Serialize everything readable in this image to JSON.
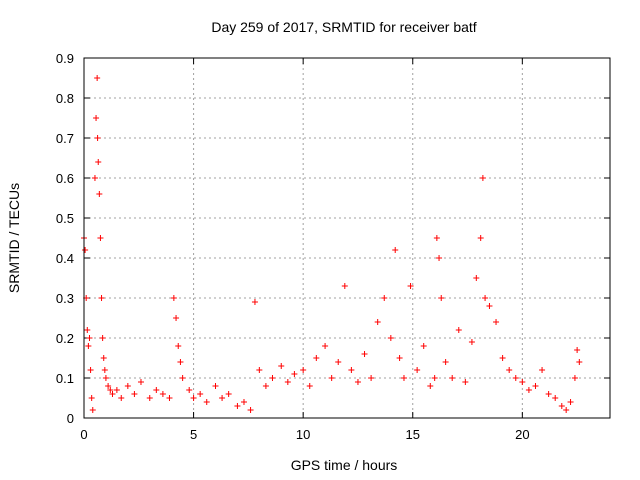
{
  "chart_data": {
    "type": "scatter",
    "title": "Day 259 of 2017, SRMTID for receiver batf",
    "xlabel": "GPS time / hours",
    "ylabel": "SRMTID / TECUs",
    "xlim": [
      0,
      24
    ],
    "ylim": [
      0,
      0.9
    ],
    "xticks": [
      0,
      5,
      10,
      15,
      20
    ],
    "xtick_labels": [
      "0",
      "5",
      "10",
      "15",
      "20"
    ],
    "yticks": [
      0,
      0.1,
      0.2,
      0.3,
      0.4,
      0.5,
      0.6,
      0.7,
      0.8,
      0.9
    ],
    "ytick_labels": [
      "0",
      "0.1",
      "0.2",
      "0.3",
      "0.4",
      "0.5",
      "0.6",
      "0.7",
      "0.8",
      "0.9"
    ],
    "grid": true,
    "marker": "+",
    "series": [
      {
        "name": "SRMTID",
        "color": "#ff0000",
        "x": [
          0.0,
          0.05,
          0.1,
          0.15,
          0.2,
          0.25,
          0.3,
          0.35,
          0.4,
          0.5,
          0.55,
          0.6,
          0.62,
          0.65,
          0.7,
          0.75,
          0.8,
          0.85,
          0.9,
          0.95,
          1.0,
          1.1,
          1.2,
          1.3,
          1.5,
          1.7,
          2.0,
          2.3,
          2.6,
          3.0,
          3.3,
          3.6,
          3.9,
          4.1,
          4.2,
          4.3,
          4.4,
          4.5,
          4.8,
          5.0,
          5.3,
          5.6,
          6.0,
          6.3,
          6.6,
          7.0,
          7.3,
          7.6,
          7.8,
          8.0,
          8.3,
          8.6,
          9.0,
          9.3,
          9.6,
          10.0,
          10.3,
          10.6,
          11.0,
          11.3,
          11.6,
          11.9,
          12.2,
          12.5,
          12.8,
          13.1,
          13.4,
          13.7,
          14.0,
          14.2,
          14.4,
          14.6,
          14.9,
          15.2,
          15.5,
          15.8,
          16.0,
          16.1,
          16.2,
          16.3,
          16.5,
          16.8,
          17.1,
          17.4,
          17.7,
          17.9,
          18.1,
          18.2,
          18.3,
          18.5,
          18.8,
          19.1,
          19.4,
          19.7,
          20.0,
          20.3,
          20.6,
          20.9,
          21.2,
          21.5,
          21.8,
          22.0,
          22.2,
          22.4,
          22.5,
          22.6
        ],
        "y": [
          0.45,
          0.42,
          0.3,
          0.22,
          0.18,
          0.2,
          0.12,
          0.05,
          0.02,
          0.6,
          0.75,
          0.85,
          0.7,
          0.64,
          0.56,
          0.45,
          0.3,
          0.2,
          0.15,
          0.12,
          0.1,
          0.08,
          0.07,
          0.06,
          0.07,
          0.05,
          0.08,
          0.06,
          0.09,
          0.05,
          0.07,
          0.06,
          0.05,
          0.3,
          0.25,
          0.18,
          0.14,
          0.1,
          0.07,
          0.05,
          0.06,
          0.04,
          0.08,
          0.05,
          0.06,
          0.03,
          0.04,
          0.02,
          0.29,
          0.12,
          0.08,
          0.1,
          0.13,
          0.09,
          0.11,
          0.12,
          0.08,
          0.15,
          0.18,
          0.1,
          0.14,
          0.33,
          0.12,
          0.09,
          0.16,
          0.1,
          0.24,
          0.3,
          0.2,
          0.42,
          0.15,
          0.1,
          0.33,
          0.12,
          0.18,
          0.08,
          0.1,
          0.45,
          0.4,
          0.3,
          0.14,
          0.1,
          0.22,
          0.09,
          0.19,
          0.35,
          0.45,
          0.6,
          0.3,
          0.28,
          0.24,
          0.15,
          0.12,
          0.1,
          0.09,
          0.07,
          0.08,
          0.12,
          0.06,
          0.05,
          0.03,
          0.02,
          0.04,
          0.1,
          0.17,
          0.14
        ]
      }
    ]
  }
}
